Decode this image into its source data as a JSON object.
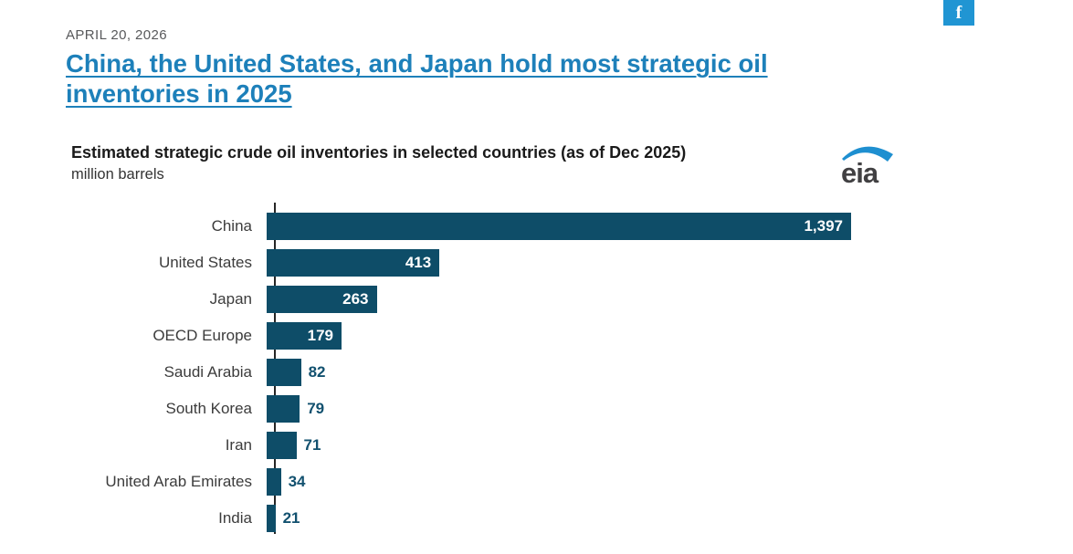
{
  "page": {
    "date": "APRIL 20, 2026",
    "headline": {
      "line1": "China, the United States, and Japan hold most strategic oil",
      "line2": "inventories in 2025"
    },
    "social": {
      "facebook_glyph": "f"
    }
  },
  "chart": {
    "title": "Estimated strategic crude oil inventories in selected countries (as of Dec 2025)",
    "subtitle": "million barrels",
    "logo_text": "eia"
  },
  "chart_data": {
    "type": "bar",
    "orientation": "horizontal",
    "title": "Estimated strategic crude oil inventories in selected countries (as of Dec 2025)",
    "units_label": "million barrels",
    "categories": [
      "China",
      "United States",
      "Japan",
      "OECD Europe",
      "Saudi Arabia",
      "South Korea",
      "Iran",
      "United Arab Emirates",
      "India"
    ],
    "values": [
      1397,
      413,
      263,
      179,
      82,
      79,
      71,
      34,
      21
    ],
    "value_labels": [
      "1,397",
      "413",
      "263",
      "179",
      "82",
      "79",
      "71",
      "34",
      "21"
    ],
    "xlim": [
      0,
      1400
    ],
    "grid": false,
    "legend": false,
    "bar_color": "#0e4d68"
  },
  "colors": {
    "headline_link": "#1d80ba",
    "date_text": "#58595b",
    "title_text": "#1a1a1a",
    "subtitle_text": "#333333",
    "category_text": "#3c3c3c",
    "bar": "#0e4d68",
    "value_inside": "#ffffff",
    "value_outside": "#12516f",
    "axis": "#262626",
    "facebook": "#2095d3",
    "eia_arc": "#1e8fd0",
    "eia_text": "#414042"
  }
}
